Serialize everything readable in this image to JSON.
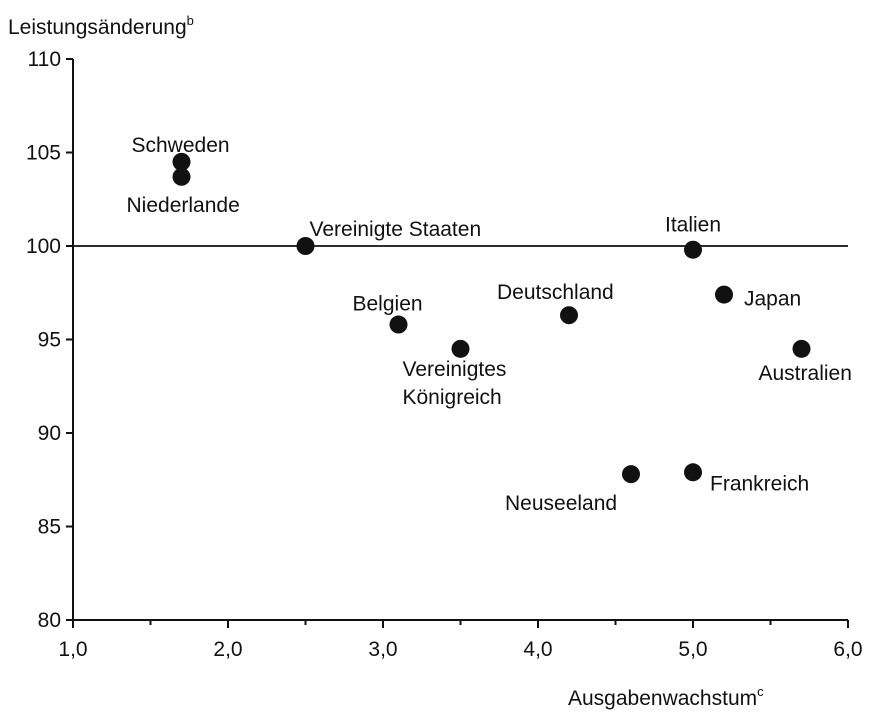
{
  "chart_data": {
    "type": "scatter",
    "ylabel": "Leistungsänderung",
    "ylabel_sup": "b",
    "xlabel": "Ausgabenwachstum",
    "xlabel_sup": "c",
    "xlim": [
      1.0,
      6.0
    ],
    "ylim": [
      80,
      110
    ],
    "xticks": [
      "1,0",
      "2,0",
      "3,0",
      "4,0",
      "5,0",
      "6,0"
    ],
    "yticks": [
      "80",
      "85",
      "90",
      "95",
      "100",
      "105",
      "110"
    ],
    "reference_line_y": 100,
    "grid": false,
    "points": [
      {
        "label": [
          "Schweden"
        ],
        "x": 1.7,
        "y": 104.5
      },
      {
        "label": [
          "Niederlande"
        ],
        "x": 1.7,
        "y": 103.7
      },
      {
        "label": [
          "Vereinigte Staaten"
        ],
        "x": 2.5,
        "y": 100.0
      },
      {
        "label": [
          "Italien"
        ],
        "x": 5.0,
        "y": 99.8
      },
      {
        "label": [
          "Japan"
        ],
        "x": 5.2,
        "y": 97.4
      },
      {
        "label": [
          "Deutschland"
        ],
        "x": 4.2,
        "y": 96.3
      },
      {
        "label": [
          "Belgien"
        ],
        "x": 3.1,
        "y": 95.8
      },
      {
        "label": [
          "Vereinigtes",
          "Königreich"
        ],
        "x": 3.5,
        "y": 94.5
      },
      {
        "label": [
          "Australien"
        ],
        "x": 5.7,
        "y": 94.5
      },
      {
        "label": [
          "Neuseeland"
        ],
        "x": 4.6,
        "y": 87.8
      },
      {
        "label": [
          "Frankreich"
        ],
        "x": 5.0,
        "y": 87.9
      }
    ]
  }
}
